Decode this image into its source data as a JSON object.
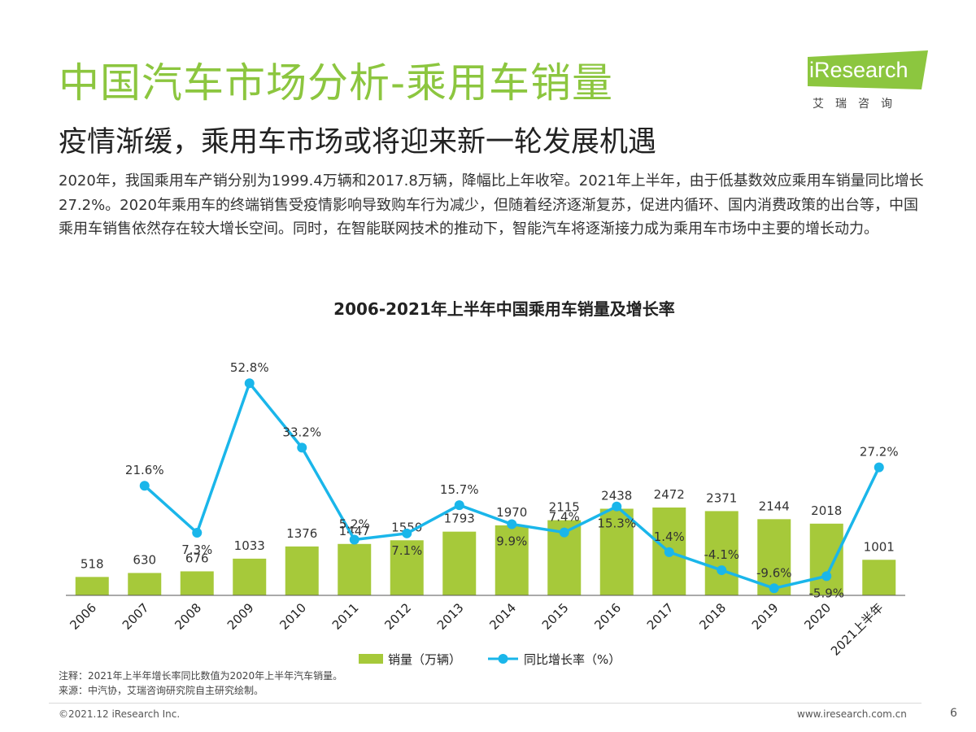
{
  "header": {
    "title": "中国汽车市场分析-乘用车销量",
    "subtitle": "疫情渐缓，乘用车市场或将迎来新一轮发展机遇",
    "description": "2020年，我国乘用车产销分别为1999.4万辆和2017.8万辆，降幅比上年收窄。2021年上半年，由于低基数效应乘用车销量同比增长27.2%。2020年乘用车的终端销售受疫情影响导致购车行为减少，但随着经济逐渐复苏，促进内循环、国内消费政策的出台等，中国乘用车销售依然存在较大增长空间。同时，在智能联网技术的推动下，智能汽车将逐渐接力成为乘用车市场中主要的增长动力。"
  },
  "logo": {
    "text": "iResearch",
    "sub": "艾瑞咨询",
    "color": "#8cc63f"
  },
  "chart_data": {
    "type": "bar+line",
    "title": "2006-2021年上半年中国乘用车销量及增长率",
    "categories": [
      "2006",
      "2007",
      "2008",
      "2009",
      "2010",
      "2011",
      "2012",
      "2013",
      "2014",
      "2015",
      "2016",
      "2017",
      "2018",
      "2019",
      "2020",
      "2021上半年"
    ],
    "series": [
      {
        "name": "销量（万辆）",
        "type": "bar",
        "color": "#a6c93a",
        "values": [
          518,
          630,
          676,
          1033,
          1376,
          1447,
          1550,
          1793,
          1970,
          2115,
          2438,
          2472,
          2371,
          2144,
          2018,
          1001
        ],
        "labels": [
          "518",
          "630",
          "676",
          "1033",
          "1376",
          "1447",
          "1550",
          "1793",
          "1970",
          "2115",
          "2438",
          "2472",
          "2371",
          "2144",
          "2018",
          "1001"
        ]
      },
      {
        "name": "同比增长率（%）",
        "type": "line",
        "color": "#1ab6ea",
        "values": [
          null,
          21.6,
          7.3,
          52.8,
          33.2,
          5.2,
          7.1,
          15.7,
          9.9,
          7.4,
          15.3,
          1.4,
          -4.1,
          -9.6,
          -5.9,
          27.2
        ],
        "labels": [
          "",
          "21.6%",
          "7.3%",
          "52.8%",
          "33.2%",
          "5.2%",
          "7.1%",
          "15.7%",
          "9.9%",
          "7.4%",
          "15.3%",
          "1.4%",
          "-4.1%",
          "-9.6%",
          "-5.9%",
          "27.2%"
        ]
      }
    ],
    "legend_position": "bottom"
  },
  "notes": {
    "note": "注释：2021年上半年增长率同比数值为2020年上半年汽车销量。",
    "source": "来源：中汽协，艾瑞咨询研究院自主研究绘制。"
  },
  "footer": {
    "copyright": "©2021.12 iResearch Inc.",
    "website": "www.iresearch.com.cn",
    "page_number": "6"
  }
}
